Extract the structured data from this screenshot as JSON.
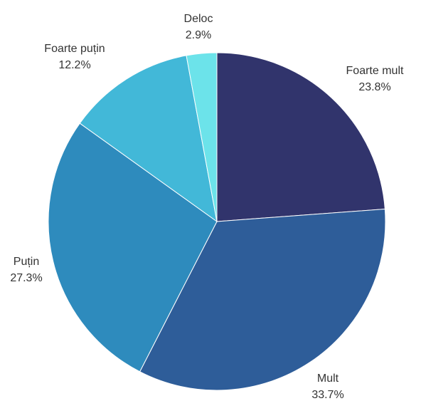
{
  "chart_data": {
    "type": "pie",
    "title": "",
    "slices": [
      {
        "label": "Foarte mult",
        "value": 23.8,
        "display": "23.8%",
        "color": "#31346c"
      },
      {
        "label": "Mult",
        "value": 33.7,
        "display": "33.7%",
        "color": "#2e5d99"
      },
      {
        "label": "Puțin",
        "value": 27.3,
        "display": "27.3%",
        "color": "#2e8bbd"
      },
      {
        "label": "Foarte puțin",
        "value": 12.2,
        "display": "12.2%",
        "color": "#42b8d8"
      },
      {
        "label": "Deloc",
        "value": 2.9,
        "display": "2.9%",
        "color": "#6ce3ea"
      }
    ],
    "start_angle": "12 o'clock",
    "direction": "clockwise",
    "legend": "none"
  }
}
